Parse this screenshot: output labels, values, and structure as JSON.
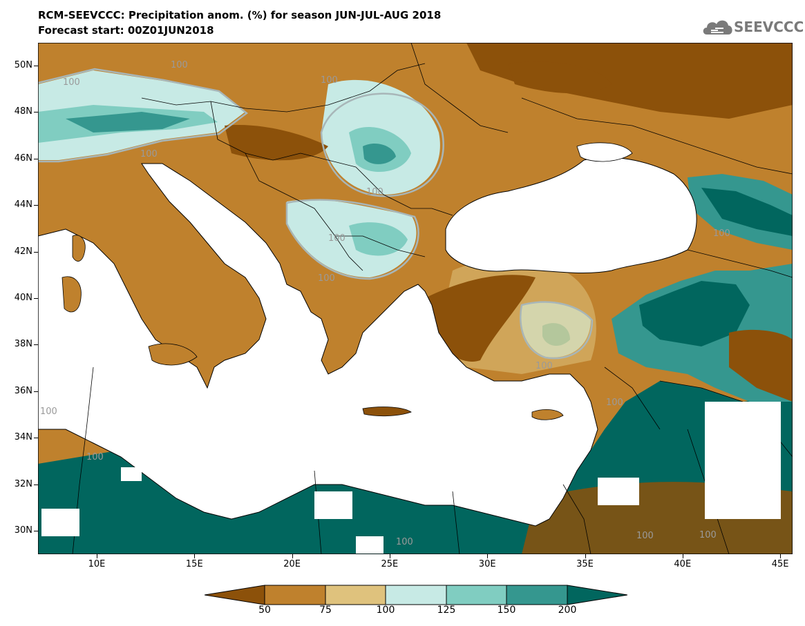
{
  "header": {
    "title": "RCM-SEEVCCC: Precipitation anom. (%) for season JUN-JUL-AUG 2018",
    "subtitle": "Forecast start: 00Z01JUN2018",
    "logo_text": "SEEVCCC"
  },
  "map": {
    "lat_labels": [
      "50N",
      "48N",
      "46N",
      "44N",
      "42N",
      "40N",
      "38N",
      "36N",
      "34N",
      "32N",
      "30N"
    ],
    "lon_labels": [
      "10E",
      "15E",
      "20E",
      "25E",
      "30E",
      "35E",
      "40E",
      "45E"
    ],
    "contour_label": "100",
    "colors": {
      "lt50": "#8c510a",
      "50_75": "#bf812d",
      "75_100": "#dfc27d",
      "100_125": "#c7eae5",
      "125_150": "#80cdc1",
      "150_200": "#35978f",
      "gt200": "#01665e",
      "sea": "#ffffff",
      "border": "#000000",
      "contour100": "#a8b6b8"
    }
  },
  "legend": {
    "labels": [
      "50",
      "75",
      "100",
      "125",
      "150",
      "200"
    ]
  }
}
